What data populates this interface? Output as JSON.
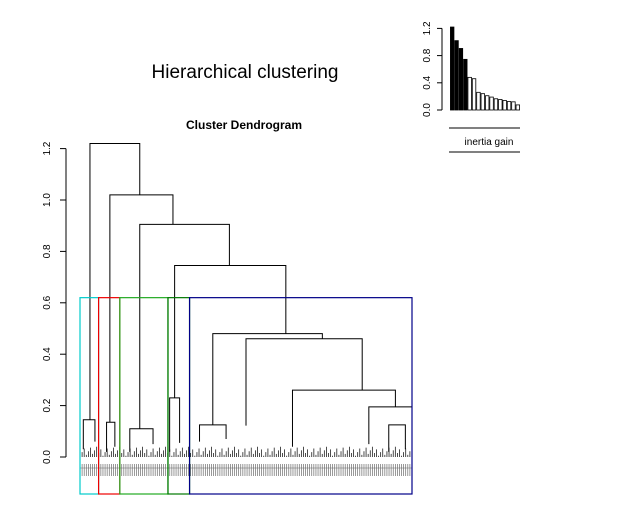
{
  "chart_data": [
    {
      "type": "dendrogram",
      "title": "Hierarchical clustering",
      "subtitle": "Cluster Dendrogram",
      "ylim": [
        0,
        1.25
      ],
      "yticks": [
        0.0,
        0.2,
        0.4,
        0.6,
        0.8,
        1.0,
        1.2
      ],
      "ytick_labels": [
        "0.0",
        "0.2",
        "0.4",
        "0.6",
        "0.8",
        "1.0",
        "1.2"
      ],
      "cut_height": 0.62,
      "top_merges": [
        1.22,
        1.02,
        0.905,
        0.745,
        0.48,
        0.46,
        0.26,
        0.195,
        0.145,
        0.135,
        0.125,
        0.122,
        0.11
      ],
      "clusters": [
        {
          "color": "#00cccc",
          "x_range": [
            0,
            0.056
          ]
        },
        {
          "color": "#ee0000",
          "x_range": [
            0.056,
            0.12
          ]
        },
        {
          "color": "#22aa22",
          "x_range": [
            0.12,
            0.265
          ]
        },
        {
          "color": "#007700",
          "x_range": [
            0.265,
            0.33
          ]
        },
        {
          "color": "#000088",
          "x_range": [
            0.33,
            1.0
          ]
        }
      ]
    },
    {
      "type": "bar",
      "xlabel": "inertia gain",
      "ylim": [
        0,
        1.25
      ],
      "yticks": [
        0.0,
        0.4,
        0.8,
        1.2
      ],
      "ytick_labels": [
        "0.0",
        "0.4",
        "0.8",
        "1.2"
      ],
      "values": [
        1.22,
        1.02,
        0.905,
        0.745,
        0.48,
        0.46,
        0.26,
        0.24,
        0.21,
        0.19,
        0.165,
        0.155,
        0.14,
        0.125,
        0.12,
        0.075
      ],
      "filled_count": 4
    }
  ]
}
